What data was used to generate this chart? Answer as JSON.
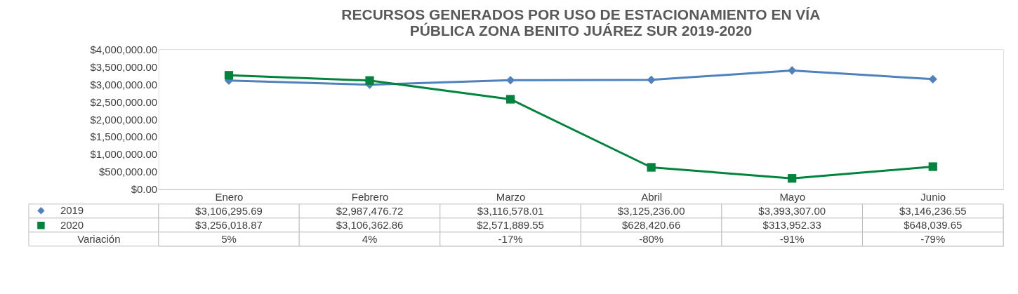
{
  "chart_data": {
    "type": "line",
    "title": "RECURSOS GENERADOS POR USO DE ESTACIONAMIENTO EN VÍA PÚBLICA ZONA BENITO JUÁREZ SUR 2019-2020",
    "categories": [
      "Enero",
      "Febrero",
      "Marzo",
      "Abril",
      "Mayo",
      "Junio"
    ],
    "series": [
      {
        "name": "2019",
        "color": "#4f81bd",
        "marker": "diamond",
        "values": [
          3106295.69,
          2987476.72,
          3116578.01,
          3125236.0,
          3393307.0,
          3146236.55
        ],
        "value_labels": [
          "$3,106,295.69",
          "$2,987,476.72",
          "$3,116,578.01",
          "$3,125,236.00",
          "$3,393,307.00",
          "$3,146,236.55"
        ]
      },
      {
        "name": "2020",
        "color": "#00843d",
        "marker": "square",
        "values": [
          3256018.87,
          3106362.86,
          2571889.55,
          628420.66,
          313952.33,
          648039.65
        ],
        "value_labels": [
          "$3,256,018.87",
          "$3,106,362.86",
          "$2,571,889.55",
          "$628,420.66",
          "$313,952.33",
          "$648,039.65"
        ]
      }
    ],
    "annotations": [
      "Variación",
      "5%",
      "4%",
      "-17%",
      "-80%",
      "-91%",
      "-79%"
    ],
    "ylim": [
      0,
      4000000
    ],
    "yticks": [
      {
        "value": 0,
        "label": "$0.00"
      },
      {
        "value": 500000,
        "label": "$500,000.00"
      },
      {
        "value": 1000000,
        "label": "$1,000,000.00"
      },
      {
        "value": 1500000,
        "label": "$1,500,000.00"
      },
      {
        "value": 2000000,
        "label": "$2,000,000.00"
      },
      {
        "value": 2500000,
        "label": "$2,500,000.00"
      },
      {
        "value": 3000000,
        "label": "$3,000,000.00"
      },
      {
        "value": 3500000,
        "label": "$3,500,000.00"
      },
      {
        "value": 4000000,
        "label": "$4,000,000.00"
      }
    ],
    "grid": false,
    "legend": "bottom left",
    "line_style": "solid"
  }
}
